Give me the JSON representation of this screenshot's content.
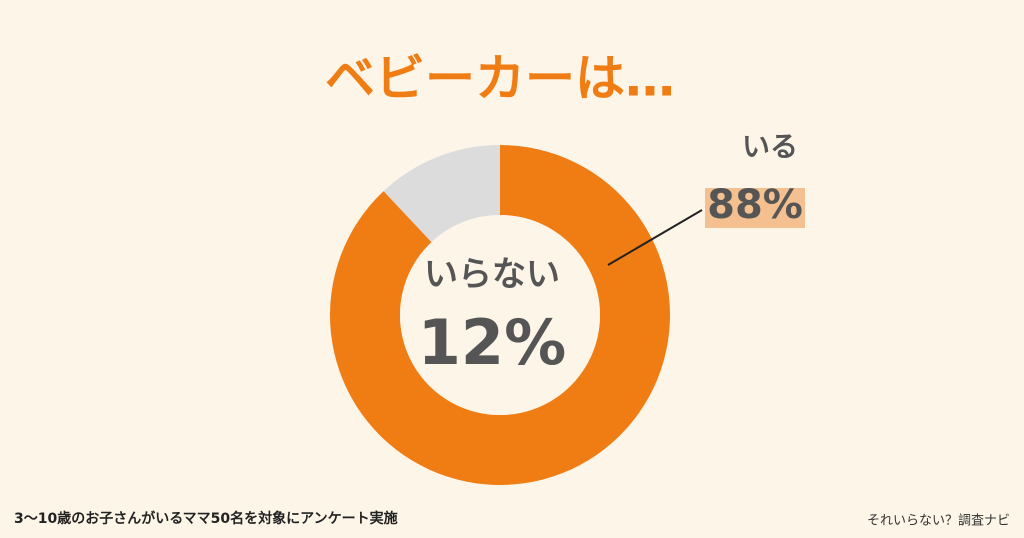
{
  "chart_data": {
    "type": "donut",
    "title": "ベビーカーは…",
    "categories": [
      "いる",
      "いらない"
    ],
    "values": [
      88,
      12
    ],
    "value_labels": [
      "88%",
      "12%"
    ],
    "colors": [
      "#f07c14",
      "#dcdcdc"
    ],
    "note": "3〜10歳のお子さんがいるママ50名を対象にアンケート実施",
    "source": "それいらない？調査ナビ"
  }
}
